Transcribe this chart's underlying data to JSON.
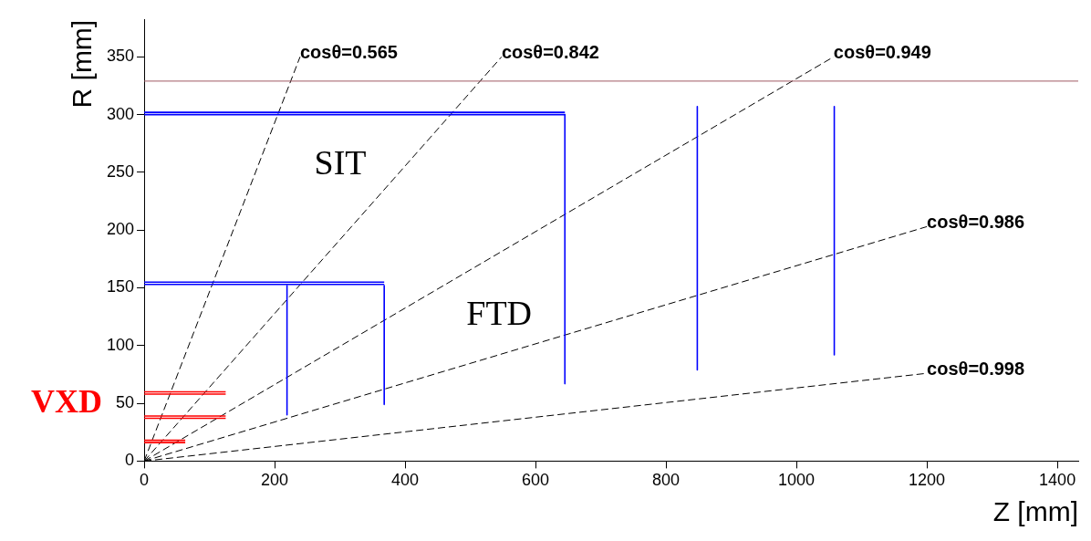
{
  "chart_data": {
    "type": "line",
    "xlabel": "Z [mm]",
    "ylabel": "R [mm]",
    "xlim": [
      0,
      1432
    ],
    "ylim": [
      0,
      382
    ],
    "xticks": [
      0,
      200,
      400,
      600,
      800,
      1000,
      1200,
      1400
    ],
    "yticks": [
      0,
      50,
      100,
      150,
      200,
      250,
      300,
      350
    ],
    "grid": false,
    "legend": false,
    "marker": "none",
    "series": [
      {
        "color": "#0000ff",
        "x": [
          0,
          645
        ],
        "values": [
          302,
          302
        ]
      },
      {
        "color": "#0000ff",
        "x": [
          0,
          645
        ],
        "values": [
          300,
          300
        ]
      },
      {
        "color": "#0000ff",
        "x": [
          645,
          645
        ],
        "values": [
          300,
          67
        ]
      },
      {
        "color": "#0000ff",
        "x": [
          0,
          368
        ],
        "values": [
          155,
          155
        ]
      },
      {
        "color": "#0000ff",
        "x": [
          0,
          368
        ],
        "values": [
          153,
          153
        ]
      },
      {
        "color": "#0000ff",
        "x": [
          219,
          219
        ],
        "values": [
          152,
          40
        ]
      },
      {
        "color": "#0000ff",
        "x": [
          368,
          368
        ],
        "values": [
          152,
          49
        ]
      },
      {
        "color": "#0000ff",
        "x": [
          848,
          848
        ],
        "values": [
          307,
          79
        ]
      },
      {
        "color": "#0000ff",
        "x": [
          1058,
          1058
        ],
        "values": [
          307,
          92
        ]
      },
      {
        "color": "#ff0000",
        "x": [
          0,
          125
        ],
        "values": [
          60,
          60
        ]
      },
      {
        "color": "#ff0000",
        "x": [
          0,
          125
        ],
        "values": [
          58,
          58
        ]
      },
      {
        "color": "#ff0000",
        "x": [
          0,
          125
        ],
        "values": [
          39,
          39
        ]
      },
      {
        "color": "#ff0000",
        "x": [
          0,
          125
        ],
        "values": [
          37,
          37
        ]
      },
      {
        "color": "#ff0000",
        "x": [
          0,
          63
        ],
        "values": [
          18,
          18
        ]
      },
      {
        "color": "#ff0000",
        "x": [
          0,
          63
        ],
        "values": [
          16,
          16
        ]
      },
      {
        "name": "cosθ=0.565",
        "color": "#000000",
        "line_style": "dashed",
        "x": [
          0,
          239
        ],
        "values": [
          0,
          350
        ]
      },
      {
        "name": "cosθ=0.842",
        "color": "#000000",
        "line_style": "dashed",
        "x": [
          0,
          548
        ],
        "values": [
          0,
          350
        ]
      },
      {
        "name": "cosθ=0.949",
        "color": "#000000",
        "line_style": "dashed",
        "x": [
          0,
          1057
        ],
        "values": [
          0,
          350
        ]
      },
      {
        "name": "cosθ=0.986",
        "color": "#000000",
        "line_style": "dashed",
        "x": [
          0,
          1200
        ],
        "values": [
          0,
          203
        ]
      },
      {
        "name": "cosθ=0.998",
        "color": "#000000",
        "line_style": "dashed",
        "x": [
          0,
          1200
        ],
        "values": [
          0,
          76
        ]
      }
    ],
    "ref_lines": [
      {
        "axis": "y",
        "value": 329,
        "color": "#a05a64"
      }
    ],
    "annotations": [
      "SIT",
      "FTD",
      "VXD"
    ]
  }
}
